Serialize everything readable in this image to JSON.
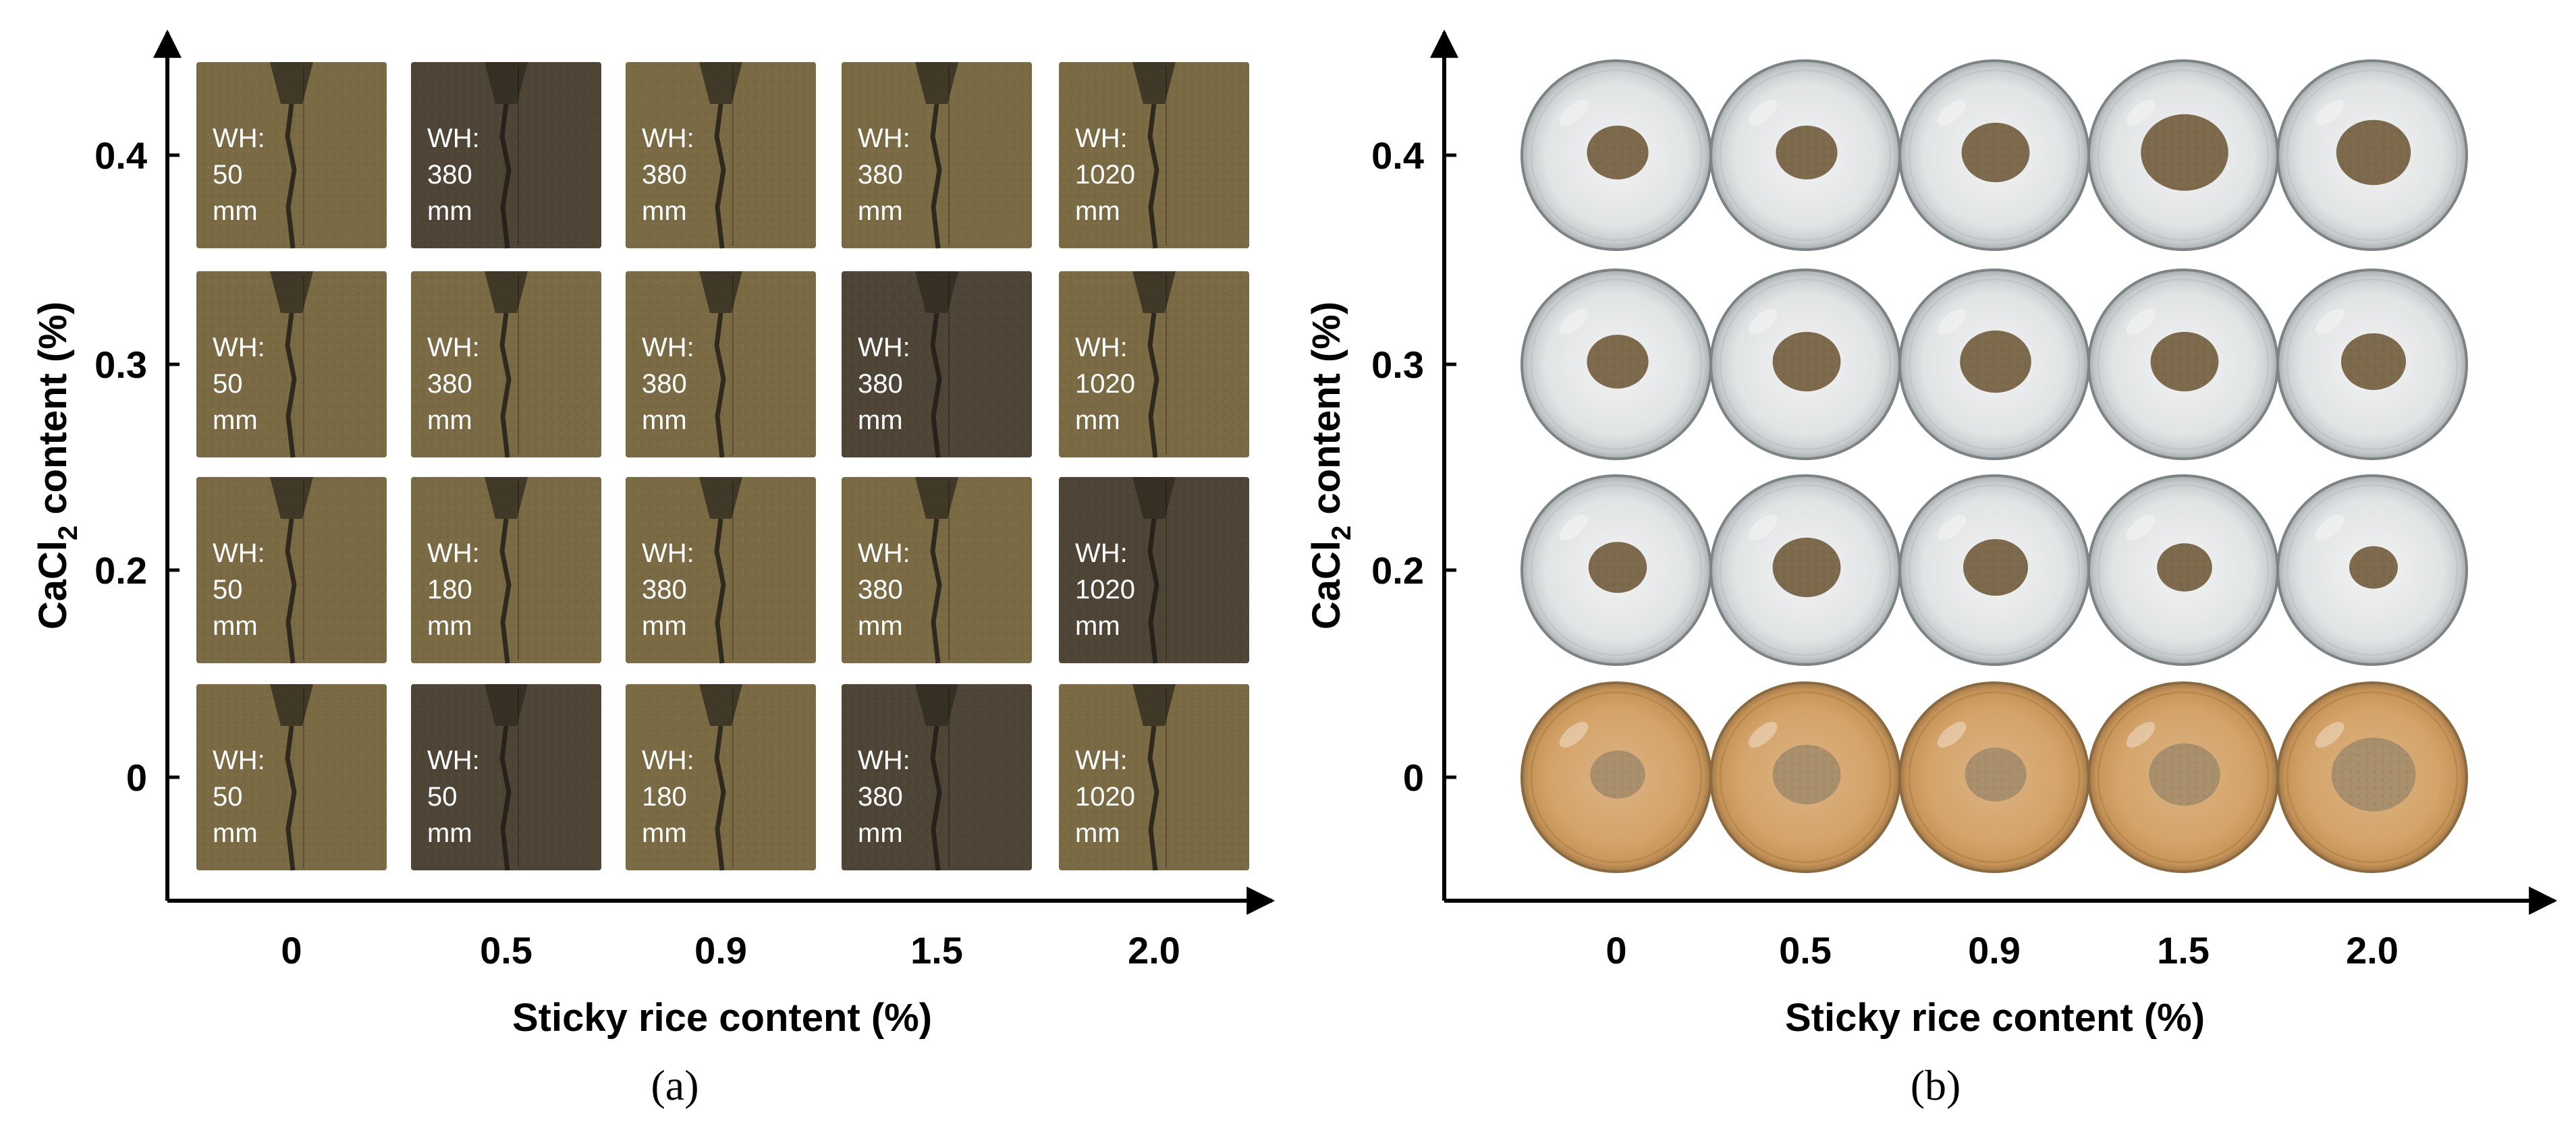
{
  "panels": [
    {
      "id": "a",
      "label": "(a)",
      "xlabel": "Sticky rice content (%)",
      "ylabel_prefix": "CaCl",
      "ylabel_sub": "2",
      "ylabel_suffix": " content (%)",
      "x_ticks": [
        "0",
        "0.5",
        "0.9",
        "1.5",
        "2.0"
      ],
      "y_ticks": [
        "0.4",
        "0.3",
        "0.2",
        "0"
      ],
      "wh_prefix": "WH:",
      "wh_unit": "mm",
      "water_heights_mm": [
        [
          "50",
          "380",
          "380",
          "380",
          "1020"
        ],
        [
          "50",
          "380",
          "380",
          "380",
          "1020"
        ],
        [
          "50",
          "180",
          "380",
          "380",
          "1020"
        ],
        [
          "50",
          "50",
          "180",
          "380",
          "1020"
        ]
      ]
    },
    {
      "id": "b",
      "label": "(b)",
      "xlabel": "Sticky rice content (%)",
      "ylabel_prefix": "CaCl",
      "ylabel_sub": "2",
      "ylabel_suffix": " content (%)",
      "x_ticks": [
        "0",
        "0.5",
        "0.9",
        "1.5",
        "2.0"
      ],
      "y_ticks": [
        "0.4",
        "0.3",
        "0.2",
        "0"
      ]
    }
  ],
  "colors": {
    "soil_light": "#7a6b45",
    "soil_dark": "#4f4536",
    "dish_clear": "#e8eaeb",
    "dish_cloudy": "#d4a46a",
    "residue": "#7d6a4d"
  }
}
